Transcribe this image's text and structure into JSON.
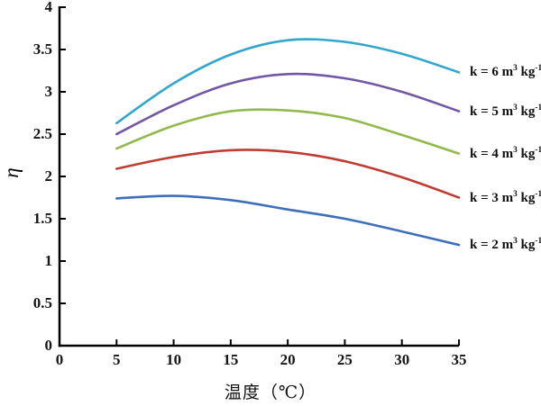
{
  "chart_data": {
    "type": "line",
    "title": "",
    "xlabel": "温度（℃）",
    "ylabel": "η",
    "xlim": [
      0,
      35
    ],
    "ylim": [
      0,
      4
    ],
    "grid": false,
    "background": "#ffffff",
    "axis_color": "#000000",
    "tick_style": "inside",
    "legend_position": "right of line ends",
    "x": [
      5,
      10,
      15,
      20,
      25,
      30,
      35
    ],
    "x_tick_values": [
      0,
      5,
      10,
      15,
      20,
      25,
      30,
      35
    ],
    "x_tick_labels": [
      "0",
      "5",
      "10",
      "15",
      "20",
      "25",
      "30",
      "35"
    ],
    "y_tick_values": [
      0,
      0.5,
      1,
      1.5,
      2,
      2.5,
      3,
      3.5,
      4
    ],
    "y_tick_labels": [
      "0",
      "0.5",
      "1",
      "1.5",
      "2",
      "2.5",
      "3",
      "3.5",
      "4"
    ],
    "series": [
      {
        "key": "k2",
        "name": "k = 2 m³ kg⁻¹",
        "label_parts": [
          {
            "text": "k = 2 m"
          },
          {
            "text": "3",
            "sup": true
          },
          {
            "text": " kg"
          },
          {
            "text": "-1",
            "sup": true
          }
        ],
        "color": "#3E6FB8",
        "values": [
          1.74,
          1.77,
          1.72,
          1.61,
          1.5,
          1.35,
          1.19
        ]
      },
      {
        "key": "k3",
        "name": "k = 3 m³ kg⁻¹",
        "label_parts": [
          {
            "text": "k = 3 m"
          },
          {
            "text": "3",
            "sup": true
          },
          {
            "text": " kg"
          },
          {
            "text": "-1",
            "sup": true
          }
        ],
        "color": "#C03B31",
        "values": [
          2.09,
          2.23,
          2.31,
          2.29,
          2.18,
          1.99,
          1.75
        ]
      },
      {
        "key": "k4",
        "name": "k = 4 m³ kg⁻¹",
        "label_parts": [
          {
            "text": "k = 4 m"
          },
          {
            "text": "3",
            "sup": true
          },
          {
            "text": " kg"
          },
          {
            "text": "-1",
            "sup": true
          }
        ],
        "color": "#93B84C",
        "values": [
          2.33,
          2.6,
          2.77,
          2.78,
          2.69,
          2.49,
          2.27
        ]
      },
      {
        "key": "k5",
        "name": "k = 5 m³ kg⁻¹",
        "label_parts": [
          {
            "text": "k = 5 m"
          },
          {
            "text": "3",
            "sup": true
          },
          {
            "text": " kg"
          },
          {
            "text": "-1",
            "sup": true
          }
        ],
        "color": "#7257A5",
        "values": [
          2.5,
          2.84,
          3.1,
          3.21,
          3.16,
          3.0,
          2.77
        ]
      },
      {
        "key": "k6",
        "name": "k = 6 m³ kg⁻¹",
        "label_parts": [
          {
            "text": "k = 6 m"
          },
          {
            "text": "3",
            "sup": true
          },
          {
            "text": " kg"
          },
          {
            "text": "-1",
            "sup": true
          }
        ],
        "color": "#31A7CB",
        "values": [
          2.63,
          3.1,
          3.44,
          3.61,
          3.59,
          3.45,
          3.23
        ]
      }
    ]
  }
}
